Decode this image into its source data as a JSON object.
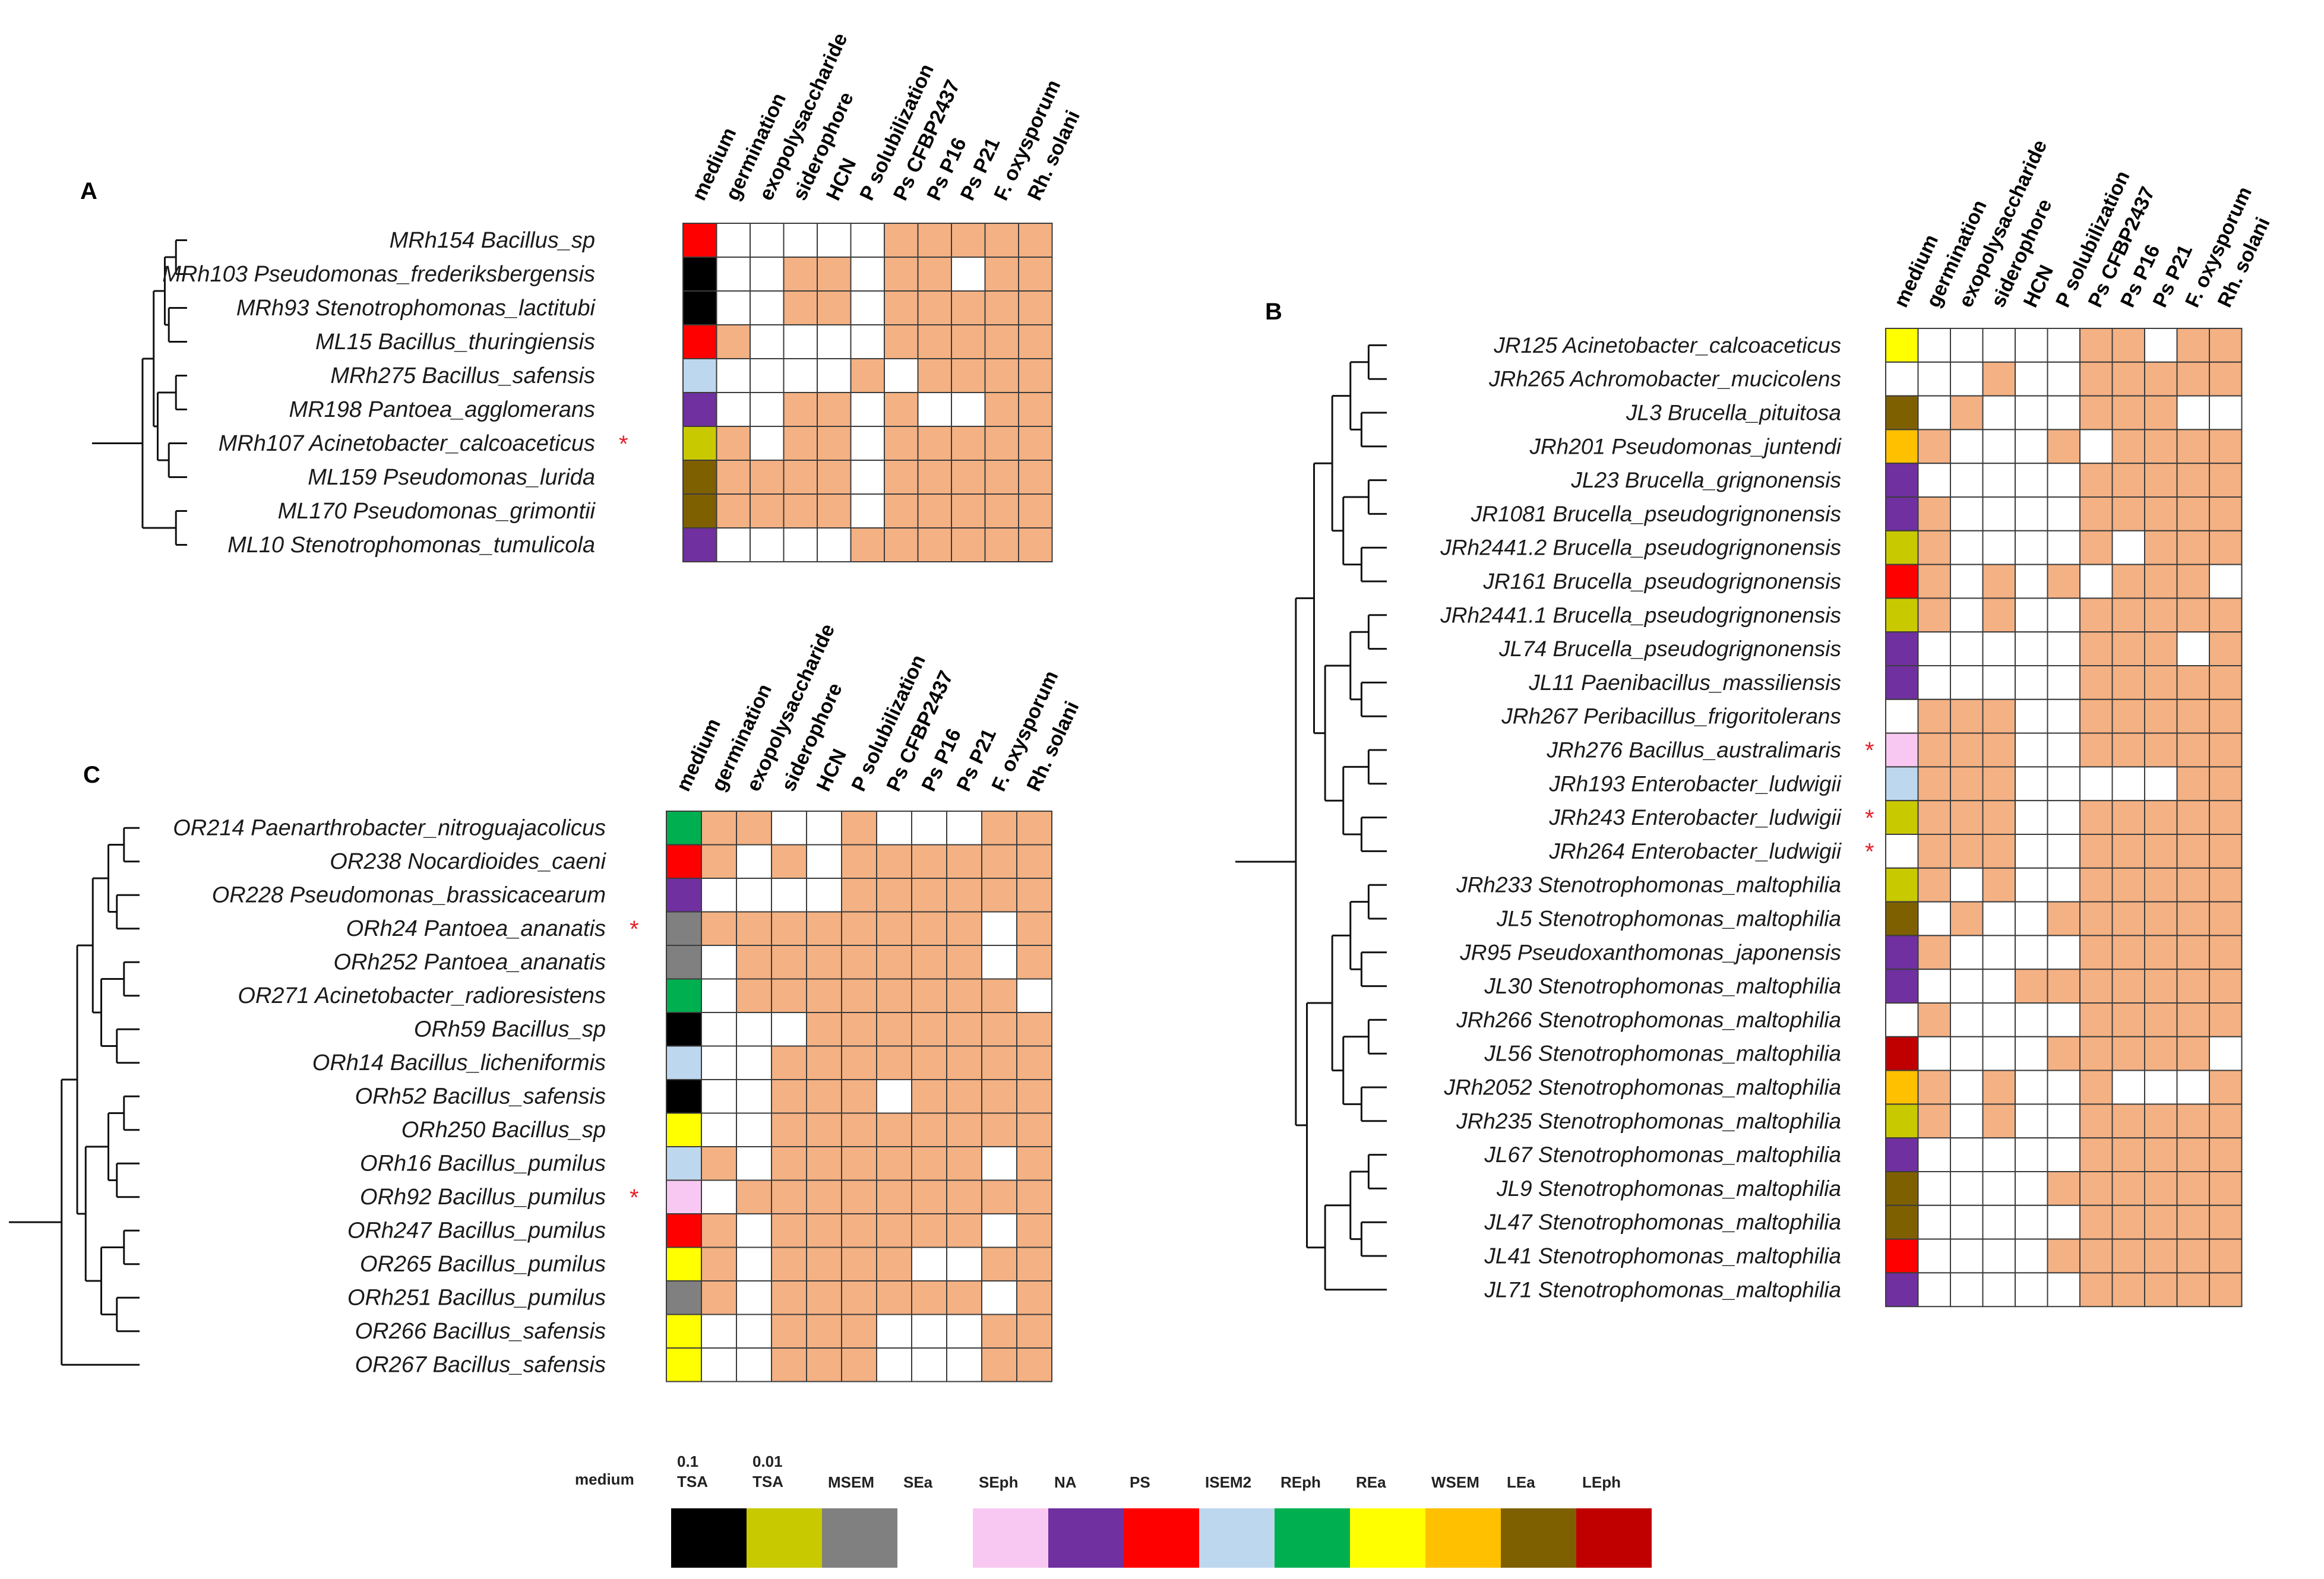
{
  "figure_title": "Phylogenetic trees of bacterial isolates with isolation medium and plant-growth-promotion / antagonism traits",
  "trait_headers": [
    "medium",
    "germination",
    "exopolysaccharide",
    "siderophore",
    "HCN",
    "P solubilization",
    "Ps CFBP2437",
    "Ps P16",
    "Ps P21",
    "F. oxysporum",
    "Rh. solani"
  ],
  "colors": {
    "positive": "#f4b183",
    "negative": "#ffffff",
    "grid": "#3c3c3c",
    "asterisk": "#e8202a"
  },
  "legend": {
    "title": "medium",
    "items": [
      {
        "label": "0.1\nTSA",
        "color": "#000000"
      },
      {
        "label": "0.01\nTSA",
        "color": "#c9c900"
      },
      {
        "label": "MSEM",
        "color": "#808080"
      },
      {
        "label": "SEa",
        "color": "#ffffff"
      },
      {
        "label": "SEph",
        "color": "#f9c8f2"
      },
      {
        "label": "NA",
        "color": "#7030a0"
      },
      {
        "label": "PS",
        "color": "#ff0000"
      },
      {
        "label": "ISEM2",
        "color": "#bdd7ee"
      },
      {
        "label": "REph",
        "color": "#00b050"
      },
      {
        "label": "REa",
        "color": "#ffff00"
      },
      {
        "label": "WSEM",
        "color": "#ffc000"
      },
      {
        "label": "LEa",
        "color": "#7f6000"
      },
      {
        "label": "LEph",
        "color": "#c00000"
      }
    ]
  },
  "panels": [
    {
      "id": "A",
      "rows": [
        {
          "label": "MRh154 Bacillus_sp",
          "star": false,
          "medium": "PS",
          "traits": [
            0,
            0,
            0,
            0,
            0,
            1,
            1,
            1,
            1,
            1
          ]
        },
        {
          "label": "MRh103 Pseudomonas_frederiksbergensis",
          "star": false,
          "medium": "0.1\nTSA",
          "traits": [
            0,
            0,
            1,
            1,
            0,
            1,
            1,
            0,
            1,
            1
          ]
        },
        {
          "label": "MRh93 Stenotrophomonas_lactitubi",
          "star": false,
          "medium": "0.1\nTSA",
          "traits": [
            0,
            0,
            1,
            1,
            0,
            1,
            1,
            1,
            1,
            1
          ]
        },
        {
          "label": "ML15 Bacillus_thuringiensis",
          "star": false,
          "medium": "PS",
          "traits": [
            1,
            0,
            0,
            0,
            0,
            1,
            1,
            1,
            1,
            1
          ]
        },
        {
          "label": "MRh275 Bacillus_safensis",
          "star": false,
          "medium": "ISEM2",
          "traits": [
            0,
            0,
            0,
            0,
            1,
            0,
            1,
            1,
            1,
            1
          ]
        },
        {
          "label": "MR198 Pantoea_agglomerans",
          "star": false,
          "medium": "NA",
          "traits": [
            0,
            0,
            1,
            1,
            0,
            1,
            0,
            0,
            1,
            1
          ]
        },
        {
          "label": "MRh107 Acinetobacter_calcoaceticus",
          "star": true,
          "medium": "0.01\nTSA",
          "traits": [
            1,
            0,
            1,
            1,
            0,
            1,
            1,
            1,
            1,
            1
          ]
        },
        {
          "label": "ML159 Pseudomonas_lurida",
          "star": false,
          "medium": "LEa",
          "traits": [
            1,
            1,
            1,
            1,
            0,
            1,
            1,
            1,
            1,
            1
          ]
        },
        {
          "label": "ML170 Pseudomonas_grimontii",
          "star": false,
          "medium": "LEa",
          "traits": [
            1,
            1,
            1,
            1,
            0,
            1,
            1,
            1,
            1,
            1
          ]
        },
        {
          "label": "ML10 Stenotrophomonas_tumulicola",
          "star": false,
          "medium": "NA",
          "traits": [
            0,
            0,
            0,
            0,
            1,
            1,
            1,
            1,
            1,
            1
          ]
        }
      ]
    },
    {
      "id": "B",
      "rows": [
        {
          "label": "JR125 Acinetobacter_calcoaceticus",
          "star": false,
          "medium": "REa",
          "traits": [
            0,
            0,
            0,
            0,
            0,
            1,
            1,
            0,
            1,
            1
          ]
        },
        {
          "label": "JRh265 Achromobacter_mucicolens",
          "star": false,
          "medium": "SEa",
          "traits": [
            0,
            0,
            1,
            0,
            0,
            1,
            1,
            1,
            1,
            1
          ]
        },
        {
          "label": "JL3 Brucella_pituitosa",
          "star": false,
          "medium": "LEa",
          "traits": [
            0,
            1,
            0,
            0,
            0,
            1,
            1,
            1,
            0,
            0
          ]
        },
        {
          "label": "JRh201 Pseudomonas_juntendi",
          "star": false,
          "medium": "WSEM",
          "traits": [
            1,
            0,
            0,
            0,
            1,
            0,
            1,
            1,
            1,
            1
          ]
        },
        {
          "label": "JL23 Brucella_grignonensis",
          "star": false,
          "medium": "NA",
          "traits": [
            0,
            0,
            0,
            0,
            0,
            1,
            1,
            1,
            1,
            1
          ]
        },
        {
          "label": "JR1081 Brucella_pseudogrignonensis",
          "star": false,
          "medium": "NA",
          "traits": [
            1,
            0,
            0,
            0,
            0,
            1,
            1,
            1,
            1,
            1
          ]
        },
        {
          "label": "JRh2441.2 Brucella_pseudogrignonensis",
          "star": false,
          "medium": "0.01\nTSA",
          "traits": [
            1,
            0,
            0,
            0,
            0,
            1,
            0,
            1,
            1,
            1
          ]
        },
        {
          "label": "JR161 Brucella_pseudogrignonensis",
          "star": false,
          "medium": "PS",
          "traits": [
            1,
            0,
            1,
            0,
            1,
            0,
            1,
            1,
            1,
            0
          ]
        },
        {
          "label": "JRh2441.1 Brucella_pseudogrignonensis",
          "star": false,
          "medium": "0.01\nTSA",
          "traits": [
            1,
            0,
            1,
            0,
            0,
            1,
            1,
            1,
            1,
            1
          ]
        },
        {
          "label": "JL74 Brucella_pseudogrignonensis",
          "star": false,
          "medium": "NA",
          "traits": [
            0,
            0,
            0,
            0,
            0,
            1,
            1,
            1,
            0,
            1
          ]
        },
        {
          "label": "JL11 Paenibacillus_massiliensis",
          "star": false,
          "medium": "NA",
          "traits": [
            0,
            0,
            0,
            0,
            0,
            1,
            1,
            1,
            1,
            1
          ]
        },
        {
          "label": "JRh267 Peribacillus_frigoritolerans",
          "star": false,
          "medium": "SEa",
          "traits": [
            1,
            1,
            1,
            0,
            0,
            1,
            1,
            1,
            1,
            1
          ]
        },
        {
          "label": "JRh276 Bacillus_australimaris",
          "star": true,
          "medium": "SEph",
          "traits": [
            1,
            1,
            1,
            0,
            0,
            1,
            1,
            1,
            1,
            1
          ]
        },
        {
          "label": "JRh193 Enterobacter_ludwigii",
          "star": false,
          "medium": "ISEM2",
          "traits": [
            1,
            1,
            1,
            0,
            0,
            0,
            0,
            0,
            1,
            1
          ]
        },
        {
          "label": "JRh243 Enterobacter_ludwigii",
          "star": true,
          "medium": "0.01\nTSA",
          "traits": [
            1,
            1,
            1,
            0,
            0,
            1,
            1,
            1,
            1,
            1
          ]
        },
        {
          "label": "JRh264 Enterobacter_ludwigii",
          "star": true,
          "medium": "SEa",
          "traits": [
            1,
            1,
            1,
            0,
            0,
            1,
            1,
            1,
            1,
            1
          ]
        },
        {
          "label": "JRh233 Stenotrophomonas_maltophilia",
          "star": false,
          "medium": "0.01\nTSA",
          "traits": [
            1,
            0,
            1,
            0,
            0,
            1,
            1,
            1,
            1,
            1
          ]
        },
        {
          "label": "JL5 Stenotrophomonas_maltophilia",
          "star": false,
          "medium": "LEa",
          "traits": [
            0,
            1,
            0,
            0,
            1,
            1,
            1,
            1,
            1,
            1
          ]
        },
        {
          "label": "JR95 Pseudoxanthomonas_japonensis",
          "star": false,
          "medium": "NA",
          "traits": [
            1,
            0,
            0,
            0,
            0,
            1,
            1,
            1,
            1,
            1
          ]
        },
        {
          "label": "JL30 Stenotrophomonas_maltophilia",
          "star": false,
          "medium": "NA",
          "traits": [
            0,
            0,
            0,
            1,
            1,
            1,
            1,
            1,
            1,
            1
          ]
        },
        {
          "label": "JRh266 Stenotrophomonas_maltophilia",
          "star": false,
          "medium": "SEa",
          "traits": [
            1,
            0,
            0,
            0,
            0,
            1,
            1,
            1,
            1,
            1
          ]
        },
        {
          "label": "JL56 Stenotrophomonas_maltophilia",
          "star": false,
          "medium": "LEph",
          "traits": [
            0,
            0,
            0,
            0,
            1,
            1,
            1,
            1,
            1,
            0
          ]
        },
        {
          "label": "JRh2052 Stenotrophomonas_maltophilia",
          "star": false,
          "medium": "WSEM",
          "traits": [
            1,
            0,
            1,
            0,
            0,
            1,
            0,
            0,
            0,
            1
          ]
        },
        {
          "label": "JRh235 Stenotrophomonas_maltophilia",
          "star": false,
          "medium": "0.01\nTSA",
          "traits": [
            1,
            0,
            1,
            0,
            0,
            1,
            1,
            1,
            1,
            1
          ]
        },
        {
          "label": "JL67 Stenotrophomonas_maltophilia",
          "star": false,
          "medium": "NA",
          "traits": [
            0,
            0,
            0,
            0,
            0,
            1,
            1,
            1,
            1,
            1
          ]
        },
        {
          "label": "JL9 Stenotrophomonas_maltophilia",
          "star": false,
          "medium": "LEa",
          "traits": [
            0,
            0,
            0,
            0,
            1,
            1,
            1,
            1,
            1,
            1
          ]
        },
        {
          "label": "JL47 Stenotrophomonas_maltophilia",
          "star": false,
          "medium": "LEa",
          "traits": [
            0,
            0,
            0,
            0,
            0,
            1,
            1,
            1,
            1,
            1
          ]
        },
        {
          "label": "JL41 Stenotrophomonas_maltophilia",
          "star": false,
          "medium": "PS",
          "traits": [
            0,
            0,
            0,
            0,
            1,
            1,
            1,
            1,
            1,
            1
          ]
        },
        {
          "label": "JL71 Stenotrophomonas_maltophilia",
          "star": false,
          "medium": "NA",
          "traits": [
            0,
            0,
            0,
            0,
            0,
            1,
            1,
            1,
            1,
            1
          ]
        }
      ]
    },
    {
      "id": "C",
      "rows": [
        {
          "label": "OR214 Paenarthrobacter_nitroguajacolicus",
          "star": false,
          "medium": "REph",
          "traits": [
            1,
            1,
            0,
            0,
            1,
            0,
            0,
            0,
            1,
            1
          ]
        },
        {
          "label": "OR238 Nocardioides_caeni",
          "star": false,
          "medium": "PS",
          "traits": [
            1,
            0,
            1,
            0,
            1,
            1,
            1,
            1,
            1,
            1
          ]
        },
        {
          "label": "OR228 Pseudomonas_brassicacearum",
          "star": false,
          "medium": "NA",
          "traits": [
            0,
            0,
            0,
            0,
            1,
            1,
            1,
            1,
            1,
            1
          ]
        },
        {
          "label": "ORh24 Pantoea_ananatis",
          "star": true,
          "medium": "MSEM",
          "traits": [
            1,
            1,
            1,
            1,
            1,
            1,
            1,
            1,
            0,
            1
          ]
        },
        {
          "label": "ORh252 Pantoea_ananatis",
          "star": false,
          "medium": "MSEM",
          "traits": [
            0,
            1,
            1,
            1,
            1,
            1,
            1,
            1,
            0,
            1
          ]
        },
        {
          "label": "OR271 Acinetobacter_radioresistens",
          "star": false,
          "medium": "REph",
          "traits": [
            0,
            1,
            1,
            1,
            1,
            1,
            1,
            1,
            1,
            0
          ]
        },
        {
          "label": "ORh59 Bacillus_sp",
          "star": false,
          "medium": "0.1\nTSA",
          "traits": [
            0,
            0,
            0,
            1,
            1,
            1,
            1,
            1,
            1,
            1
          ]
        },
        {
          "label": "ORh14 Bacillus_licheniformis",
          "star": false,
          "medium": "ISEM2",
          "traits": [
            0,
            0,
            1,
            1,
            1,
            1,
            1,
            1,
            1,
            1
          ]
        },
        {
          "label": "ORh52 Bacillus_safensis",
          "star": false,
          "medium": "0.1\nTSA",
          "traits": [
            0,
            0,
            1,
            1,
            1,
            0,
            1,
            1,
            1,
            1
          ]
        },
        {
          "label": "ORh250 Bacillus_sp",
          "star": false,
          "medium": "REa",
          "traits": [
            0,
            0,
            1,
            1,
            1,
            1,
            1,
            1,
            1,
            1
          ]
        },
        {
          "label": "ORh16 Bacillus_pumilus",
          "star": false,
          "medium": "ISEM2",
          "traits": [
            1,
            0,
            1,
            1,
            1,
            1,
            1,
            1,
            0,
            1
          ]
        },
        {
          "label": "ORh92 Bacillus_pumilus",
          "star": true,
          "medium": "SEph",
          "traits": [
            0,
            1,
            1,
            1,
            1,
            1,
            1,
            1,
            1,
            1
          ]
        },
        {
          "label": "ORh247 Bacillus_pumilus",
          "star": false,
          "medium": "PS",
          "traits": [
            1,
            0,
            1,
            1,
            1,
            1,
            1,
            1,
            0,
            1
          ]
        },
        {
          "label": "OR265 Bacillus_pumilus",
          "star": false,
          "medium": "REa",
          "traits": [
            1,
            0,
            1,
            1,
            1,
            1,
            0,
            0,
            1,
            1
          ]
        },
        {
          "label": "ORh251 Bacillus_pumilus",
          "star": false,
          "medium": "MSEM",
          "traits": [
            1,
            0,
            1,
            1,
            1,
            1,
            1,
            1,
            0,
            1
          ]
        },
        {
          "label": "OR266 Bacillus_safensis",
          "star": false,
          "medium": "REa",
          "traits": [
            0,
            0,
            1,
            1,
            1,
            0,
            0,
            0,
            1,
            1
          ]
        },
        {
          "label": "OR267 Bacillus_safensis",
          "star": false,
          "medium": "REa",
          "traits": [
            0,
            0,
            1,
            1,
            1,
            0,
            0,
            0,
            1,
            1
          ]
        }
      ]
    }
  ]
}
